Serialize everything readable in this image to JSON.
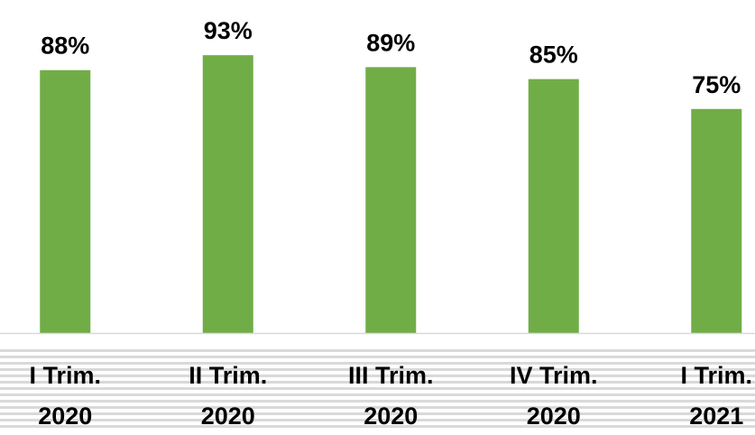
{
  "chart_data": {
    "type": "bar",
    "title": "",
    "xlabel": "",
    "ylabel": "",
    "categories": [
      [
        "I Trim.",
        "2020"
      ],
      [
        "II Trim.",
        "2020"
      ],
      [
        "III Trim.",
        "2020"
      ],
      [
        "IV Trim.",
        "2020"
      ],
      [
        "I Trim.",
        "2021"
      ]
    ],
    "values": [
      88,
      93,
      89,
      85,
      75
    ],
    "data_labels": [
      "88%",
      "93%",
      "89%",
      "85%",
      "75%"
    ],
    "value_unit": "%",
    "ylim": [
      0,
      100
    ],
    "grid": false,
    "legend": "none",
    "colors": {
      "bar": "#70ad47",
      "baseline": "#d9d9d9",
      "band": "#d9d9d9",
      "label": "#000000"
    }
  }
}
